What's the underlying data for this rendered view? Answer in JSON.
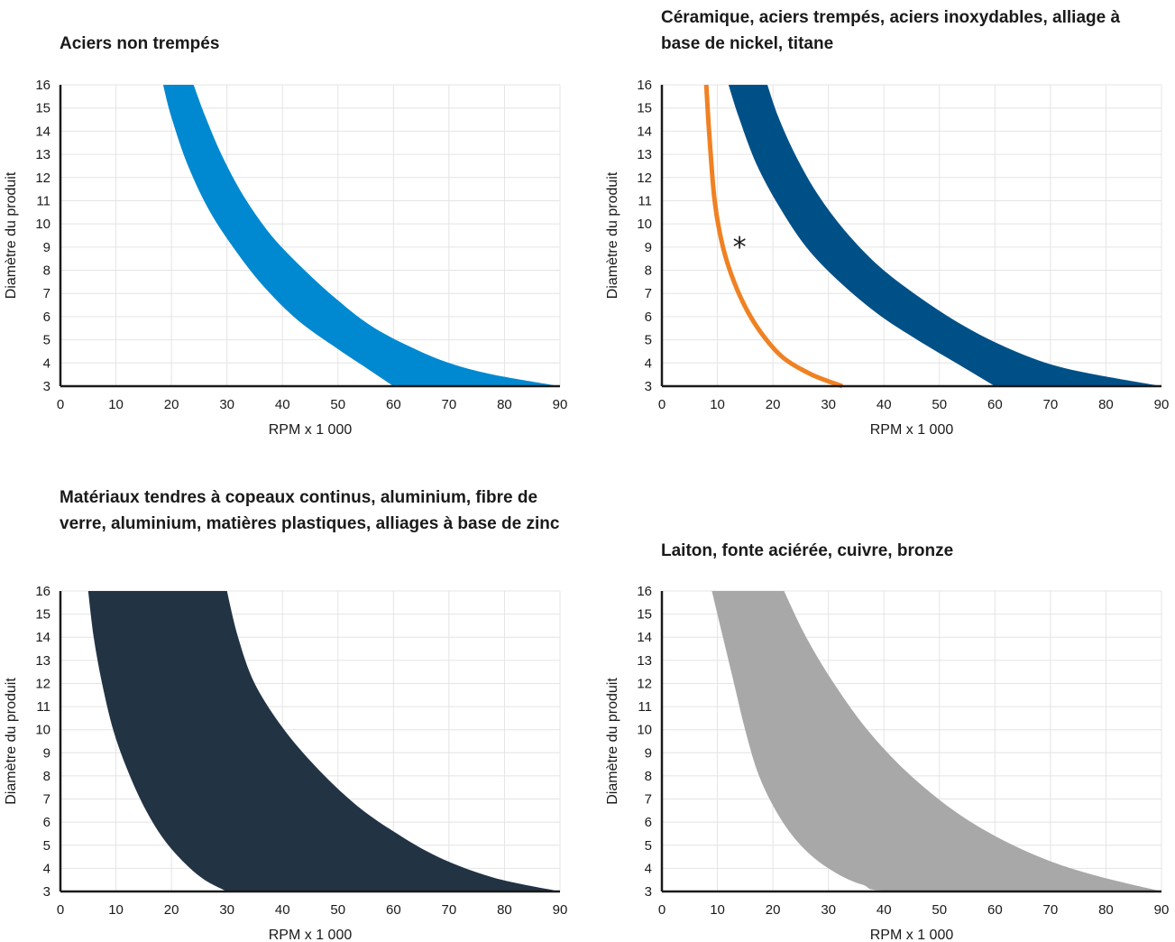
{
  "chart_data": [
    {
      "type": "area",
      "title": "Aciers non trempés",
      "xlabel": "RPM x 1 000",
      "ylabel": "Diamètre du produit",
      "xlim": [
        0,
        90
      ],
      "ylim": [
        3,
        16
      ],
      "xticks": [
        0,
        10,
        20,
        30,
        40,
        50,
        60,
        70,
        80,
        90
      ],
      "yticks": [
        3,
        4,
        5,
        6,
        7,
        8,
        9,
        10,
        11,
        12,
        13,
        14,
        15,
        16
      ],
      "grid": true,
      "series": [
        {
          "kind": "band",
          "color": "#0089d0",
          "lower": [
            [
              18.5,
              16
            ],
            [
              20,
              14.6
            ],
            [
              23,
              12.5
            ],
            [
              27,
              10.5
            ],
            [
              32,
              8.7
            ],
            [
              37,
              7.2
            ],
            [
              43,
              5.8
            ],
            [
              50,
              4.6
            ],
            [
              55,
              3.8
            ],
            [
              60,
              3
            ]
          ],
          "upper": [
            [
              24,
              16
            ],
            [
              26,
              14.7
            ],
            [
              29,
              13
            ],
            [
              33,
              11.2
            ],
            [
              38,
              9.5
            ],
            [
              44,
              8
            ],
            [
              50,
              6.7
            ],
            [
              56,
              5.6
            ],
            [
              63,
              4.7
            ],
            [
              70,
              4
            ],
            [
              78,
              3.5
            ],
            [
              90,
              3
            ]
          ]
        }
      ]
    },
    {
      "type": "area",
      "title": "Céramique, aciers trempés, aciers inoxydables, alliage à base de nickel, titane",
      "xlabel": "RPM x 1 000",
      "ylabel": "Diamètre du produit",
      "xlim": [
        0,
        90
      ],
      "ylim": [
        3,
        16
      ],
      "xticks": [
        0,
        10,
        20,
        30,
        40,
        50,
        60,
        70,
        80,
        90
      ],
      "yticks": [
        3,
        4,
        5,
        6,
        7,
        8,
        9,
        10,
        11,
        12,
        13,
        14,
        15,
        16
      ],
      "grid": true,
      "annotations": [
        {
          "text": "*",
          "x": 14,
          "y": 9
        }
      ],
      "series": [
        {
          "kind": "band",
          "color": "#005088",
          "lower": [
            [
              12,
              16
            ],
            [
              14,
              14.5
            ],
            [
              17,
              12.6
            ],
            [
              21,
              10.8
            ],
            [
              26,
              9
            ],
            [
              32,
              7.5
            ],
            [
              39,
              6.1
            ],
            [
              46,
              5
            ],
            [
              53,
              4
            ],
            [
              60,
              3
            ]
          ],
          "upper": [
            [
              19,
              16
            ],
            [
              21,
              14.6
            ],
            [
              24,
              13
            ],
            [
              28,
              11.3
            ],
            [
              33,
              9.7
            ],
            [
              39,
              8.2
            ],
            [
              46,
              6.9
            ],
            [
              53,
              5.8
            ],
            [
              60,
              4.9
            ],
            [
              68,
              4.1
            ],
            [
              76,
              3.6
            ],
            [
              90,
              3
            ]
          ]
        },
        {
          "kind": "line",
          "color": "#f08122",
          "points": [
            [
              8,
              16
            ],
            [
              8.5,
              14
            ],
            [
              9.5,
              11
            ],
            [
              11,
              9
            ],
            [
              13,
              7.5
            ],
            [
              15.5,
              6.2
            ],
            [
              18.5,
              5.1
            ],
            [
              22,
              4.2
            ],
            [
              27,
              3.5
            ],
            [
              32.5,
              3
            ]
          ]
        }
      ]
    },
    {
      "type": "area",
      "title": "Matériaux tendres à copeaux continus, aluminium, fibre de verre, aluminium, matières plastiques, alliages à base de zinc",
      "xlabel": "RPM x 1 000",
      "ylabel": "Diamètre du produit",
      "xlim": [
        0,
        90
      ],
      "ylim": [
        3,
        16
      ],
      "xticks": [
        0,
        10,
        20,
        30,
        40,
        50,
        60,
        70,
        80,
        90
      ],
      "yticks": [
        3,
        4,
        5,
        6,
        7,
        8,
        9,
        10,
        11,
        12,
        13,
        14,
        15,
        16
      ],
      "grid": true,
      "series": [
        {
          "kind": "band",
          "color": "#223344",
          "lower": [
            [
              5,
              16
            ],
            [
              6,
              14
            ],
            [
              7.5,
              12
            ],
            [
              9.5,
              10
            ],
            [
              12,
              8.3
            ],
            [
              15,
              6.7
            ],
            [
              18.5,
              5.3
            ],
            [
              22.5,
              4.2
            ],
            [
              26,
              3.5
            ],
            [
              30,
              3
            ]
          ],
          "upper": [
            [
              30,
              16
            ],
            [
              32,
              14
            ],
            [
              35,
              12
            ],
            [
              40,
              10.1
            ],
            [
              46,
              8.4
            ],
            [
              53,
              6.8
            ],
            [
              60,
              5.6
            ],
            [
              68,
              4.5
            ],
            [
              78,
              3.6
            ],
            [
              90,
              3
            ]
          ]
        }
      ]
    },
    {
      "type": "area",
      "title": "Laiton, fonte aciérée, cuivre, bronze",
      "xlabel": "RPM x 1 000",
      "ylabel": "Diamètre du produit",
      "xlim": [
        0,
        90
      ],
      "ylim": [
        3,
        16
      ],
      "xticks": [
        0,
        10,
        20,
        30,
        40,
        50,
        60,
        70,
        80,
        90
      ],
      "yticks": [
        3,
        4,
        5,
        6,
        7,
        8,
        9,
        10,
        11,
        12,
        13,
        14,
        15,
        16
      ],
      "grid": true,
      "series": [
        {
          "kind": "band",
          "color": "#a8a8a8",
          "lower": [
            [
              9,
              16
            ],
            [
              11,
              14
            ],
            [
              13,
              12
            ],
            [
              15,
              10
            ],
            [
              17.5,
              8
            ],
            [
              21,
              6.3
            ],
            [
              25,
              5
            ],
            [
              30,
              4
            ],
            [
              36,
              3.3
            ],
            [
              44,
              3
            ],
            [
              90,
              3
            ]
          ],
          "upper": [
            [
              22,
              16
            ],
            [
              26,
              14
            ],
            [
              31,
              12
            ],
            [
              37,
              10
            ],
            [
              44,
              8.2
            ],
            [
              52,
              6.6
            ],
            [
              60,
              5.4
            ],
            [
              69,
              4.4
            ],
            [
              78,
              3.7
            ],
            [
              90,
              3
            ]
          ]
        }
      ]
    }
  ]
}
